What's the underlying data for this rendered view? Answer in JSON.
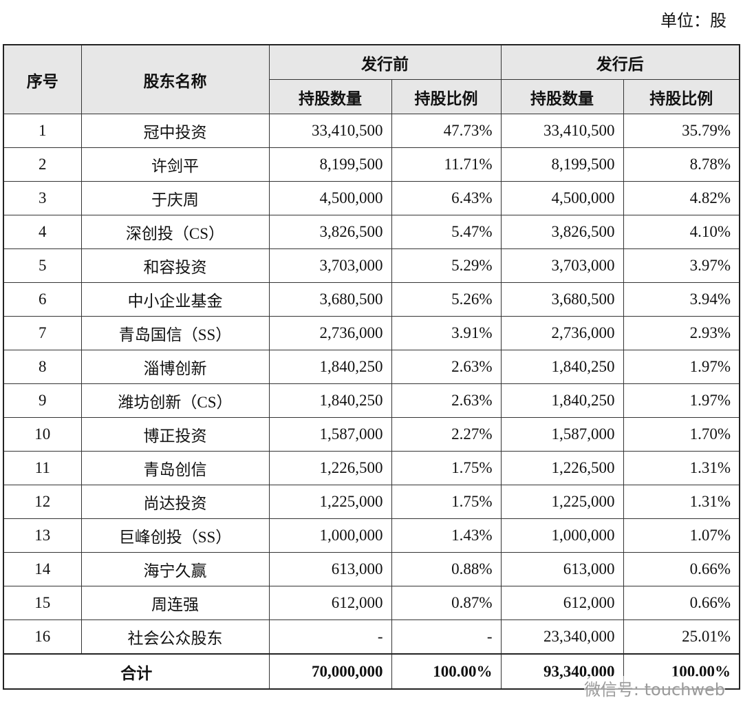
{
  "unit": "单位：股",
  "table": {
    "header": {
      "index": "序号",
      "name": "股东名称",
      "before": "发行前",
      "after": "发行后"
    },
    "subheaders": [
      "持股数量",
      "持股比例",
      "持股数量",
      "持股比例"
    ],
    "rows": [
      [
        "1",
        "冠中投资",
        "33,410,500",
        "47.73%",
        "33,410,500",
        "35.79%"
      ],
      [
        "2",
        "许剑平",
        "8,199,500",
        "11.71%",
        "8,199,500",
        "8.78%"
      ],
      [
        "3",
        "于庆周",
        "4,500,000",
        "6.43%",
        "4,500,000",
        "4.82%"
      ],
      [
        "4",
        "深创投（CS）",
        "3,826,500",
        "5.47%",
        "3,826,500",
        "4.10%"
      ],
      [
        "5",
        "和容投资",
        "3,703,000",
        "5.29%",
        "3,703,000",
        "3.97%"
      ],
      [
        "6",
        "中小企业基金",
        "3,680,500",
        "5.26%",
        "3,680,500",
        "3.94%"
      ],
      [
        "7",
        "青岛国信（SS）",
        "2,736,000",
        "3.91%",
        "2,736,000",
        "2.93%"
      ],
      [
        "8",
        "淄博创新",
        "1,840,250",
        "2.63%",
        "1,840,250",
        "1.97%"
      ],
      [
        "9",
        "潍坊创新（CS）",
        "1,840,250",
        "2.63%",
        "1,840,250",
        "1.97%"
      ],
      [
        "10",
        "博正投资",
        "1,587,000",
        "2.27%",
        "1,587,000",
        "1.70%"
      ],
      [
        "11",
        "青岛创信",
        "1,226,500",
        "1.75%",
        "1,226,500",
        "1.31%"
      ],
      [
        "12",
        "尚达投资",
        "1,225,000",
        "1.75%",
        "1,225,000",
        "1.31%"
      ],
      [
        "13",
        "巨峰创投（SS）",
        "1,000,000",
        "1.43%",
        "1,000,000",
        "1.07%"
      ],
      [
        "14",
        "海宁久赢",
        "613,000",
        "0.88%",
        "613,000",
        "0.66%"
      ],
      [
        "15",
        "周连强",
        "612,000",
        "0.87%",
        "612,000",
        "0.66%"
      ],
      [
        "16",
        "社会公众股东",
        "-",
        "-",
        "23,340,000",
        "25.01%"
      ]
    ],
    "total": [
      "合计",
      "70,000,000",
      "100.00%",
      "93,340,000",
      "100.00%"
    ]
  },
  "watermark": "微信号: touchweb"
}
